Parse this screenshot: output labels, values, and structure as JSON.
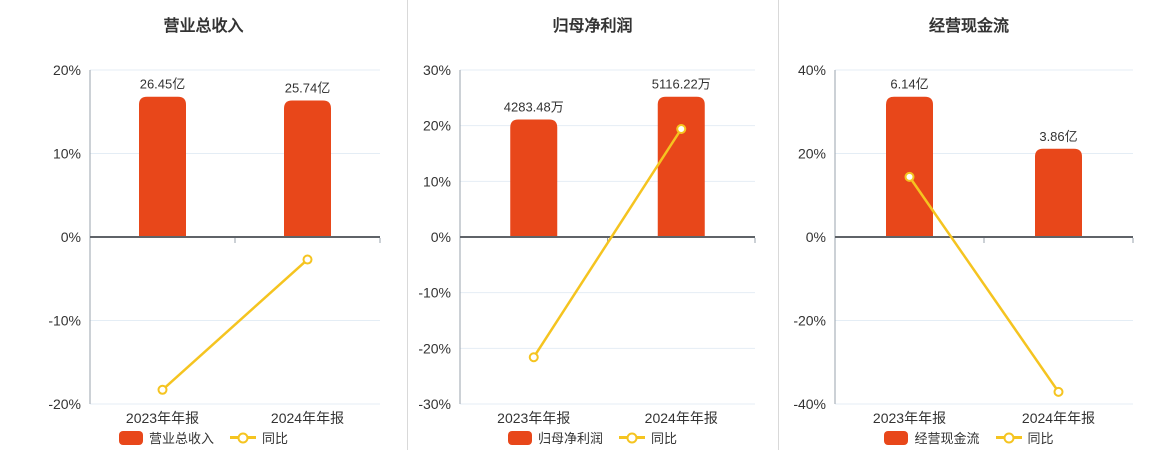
{
  "colors": {
    "bar": "#e8471a",
    "line": "#f5c420",
    "grid": "#e4edf5",
    "zero_axis": "#5f6368",
    "axis": "#9aa3ad",
    "text": "#333333",
    "divider": "#d9d9d9",
    "background": "#ffffff"
  },
  "chart_data": [
    {
      "type": "bar+line",
      "title": "营业总收入",
      "categories": [
        "2023年年报",
        "2024年年报"
      ],
      "bar_series": {
        "name": "营业总收入",
        "values": [
          26.45,
          25.74
        ],
        "unit": "亿",
        "value_labels": [
          "26.45亿",
          "25.74亿"
        ]
      },
      "line_series": {
        "name": "同比",
        "unit": "%",
        "values_pct": [
          -18.3,
          -2.7
        ]
      },
      "y_axis": {
        "min": -20,
        "max": 20,
        "tick_step": 10,
        "tick_values": [
          20,
          10,
          0,
          -10,
          -20
        ],
        "tick_labels": [
          "20%",
          "10%",
          "0%",
          "-10%",
          "-20%"
        ]
      },
      "legend": {
        "position": "bottom",
        "items": [
          {
            "label": "营业总收入",
            "marker": "bar"
          },
          {
            "label": "同比",
            "marker": "line"
          }
        ]
      },
      "grid": true,
      "bar_height_fraction_of_axis_max": 0.84
    },
    {
      "type": "bar+line",
      "title": "归母净利润",
      "categories": [
        "2023年年报",
        "2024年年报"
      ],
      "bar_series": {
        "name": "归母净利润",
        "values": [
          4283.48,
          5116.22
        ],
        "unit": "万",
        "value_labels": [
          "4283.48万",
          "5116.22万"
        ]
      },
      "line_series": {
        "name": "同比",
        "unit": "%",
        "values_pct": [
          -21.6,
          19.4
        ]
      },
      "y_axis": {
        "min": -30,
        "max": 30,
        "tick_step": 10,
        "tick_values": [
          30,
          20,
          10,
          0,
          -10,
          -20,
          -30
        ],
        "tick_labels": [
          "30%",
          "20%",
          "10%",
          "0%",
          "-10%",
          "-20%",
          "-30%"
        ]
      },
      "legend": {
        "position": "bottom",
        "items": [
          {
            "label": "归母净利润",
            "marker": "bar"
          },
          {
            "label": "同比",
            "marker": "line"
          }
        ]
      },
      "grid": true,
      "bar_height_fraction_of_axis_max": 0.84
    },
    {
      "type": "bar+line",
      "title": "经营现金流",
      "categories": [
        "2023年年报",
        "2024年年报"
      ],
      "bar_series": {
        "name": "经营现金流",
        "values": [
          6.14,
          3.86
        ],
        "unit": "亿",
        "value_labels": [
          "6.14亿",
          "3.86亿"
        ]
      },
      "line_series": {
        "name": "同比",
        "unit": "%",
        "values_pct": [
          14.4,
          -37.1
        ]
      },
      "y_axis": {
        "min": -40,
        "max": 40,
        "tick_step": 20,
        "tick_values": [
          40,
          20,
          0,
          -20,
          -40
        ],
        "tick_labels": [
          "40%",
          "20%",
          "0%",
          "-20%",
          "-40%"
        ]
      },
      "legend": {
        "position": "bottom",
        "items": [
          {
            "label": "经营现金流",
            "marker": "bar"
          },
          {
            "label": "同比",
            "marker": "line"
          }
        ]
      },
      "grid": true,
      "bar_height_fraction_of_axis_max": 0.84
    }
  ]
}
